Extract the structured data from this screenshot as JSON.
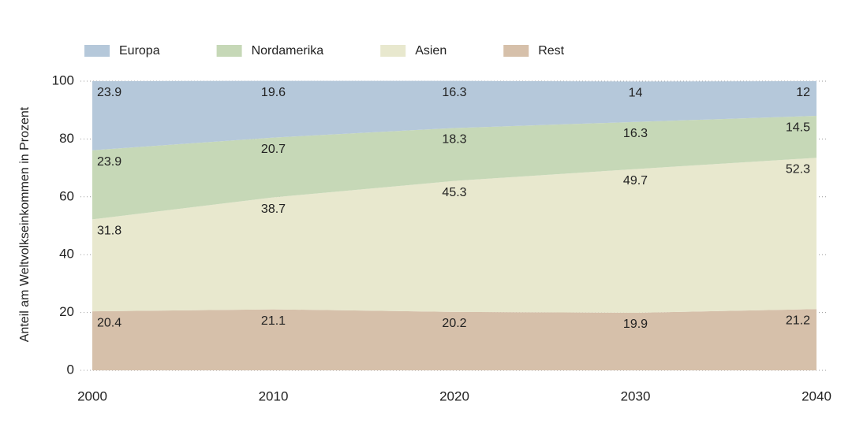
{
  "chart_data": {
    "type": "stacked_area",
    "y_label": "Anteil am Weltvolkseinkommen in Prozent",
    "x": [
      2000,
      2010,
      2020,
      2030,
      2040
    ],
    "xlim": [
      2000,
      2040
    ],
    "xticks": [
      2000,
      2010,
      2020,
      2030,
      2040
    ],
    "ylim": [
      0,
      100
    ],
    "yticks": [
      0,
      20,
      40,
      60,
      80,
      100
    ],
    "grid": true,
    "legend": "top",
    "series": [
      {
        "name": "Rest",
        "color": "#d6c0aa",
        "values": [
          20.4,
          21.1,
          20.2,
          19.9,
          21.2
        ]
      },
      {
        "name": "Asien",
        "color": "#e8e8ce",
        "values": [
          31.8,
          38.7,
          45.3,
          49.7,
          52.3
        ]
      },
      {
        "name": "Nordamerika",
        "color": "#c6d8b7",
        "values": [
          23.9,
          20.7,
          18.3,
          16.3,
          14.5
        ]
      },
      {
        "name": "Europa",
        "color": "#b5c8da",
        "values": [
          23.9,
          19.6,
          16.3,
          14.0,
          12.0
        ]
      }
    ]
  }
}
